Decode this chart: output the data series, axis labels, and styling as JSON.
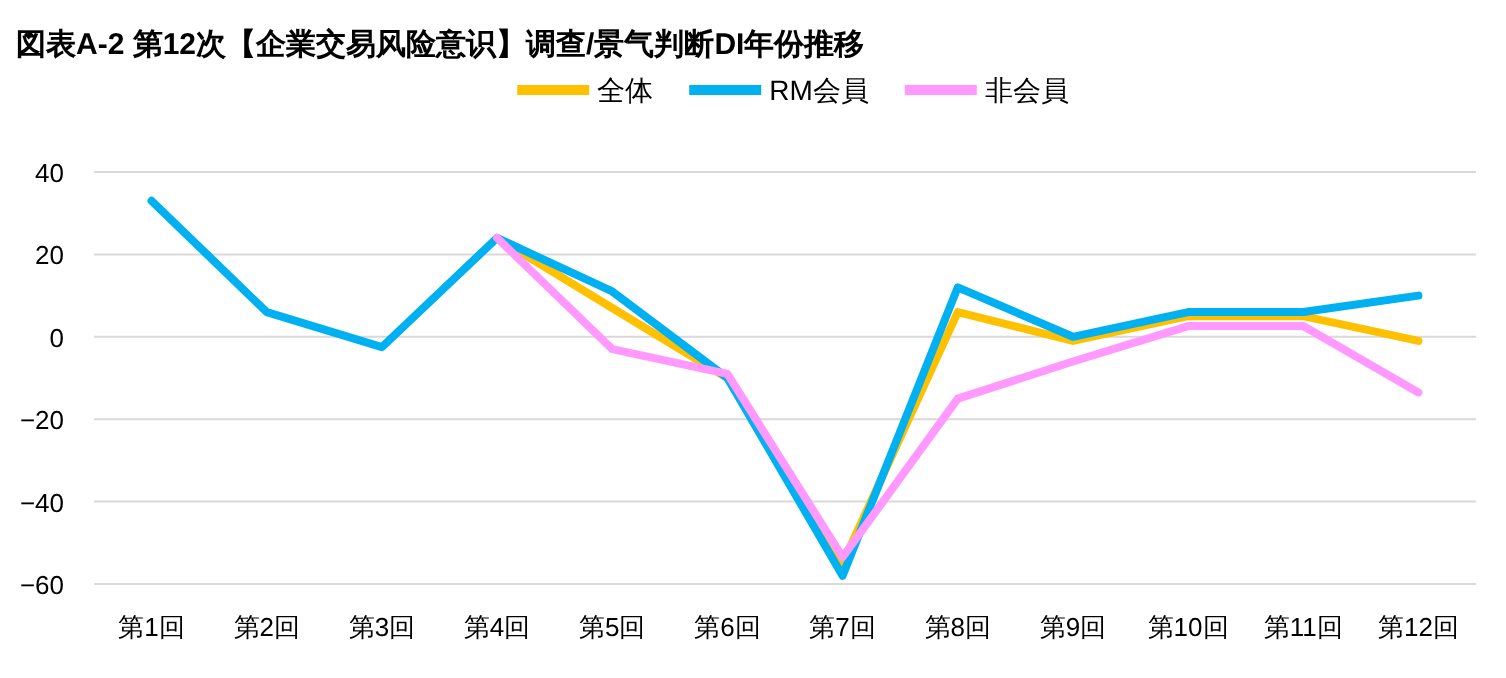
{
  "chart_data": {
    "type": "line",
    "title": "図表A-2 第12次【企業交易风险意识】调查/景气判断DI年份推移",
    "categories": [
      "第1回",
      "第2回",
      "第3回",
      "第4回",
      "第5回",
      "第6回",
      "第7回",
      "第8回",
      "第9回",
      "第10回",
      "第11回",
      "第12回"
    ],
    "series": [
      {
        "name": "全体",
        "color": "#ffc000",
        "values": [
          null,
          null,
          null,
          24,
          7,
          -10,
          -55,
          6,
          -1,
          5,
          5,
          -1
        ]
      },
      {
        "name": "RM会員",
        "color": "#00b0f0",
        "values": [
          33,
          6,
          -2.5,
          24,
          11,
          -10,
          -58,
          12,
          0,
          6,
          6,
          10
        ]
      },
      {
        "name": "非会員",
        "color": "#ff99ff",
        "values": [
          null,
          null,
          null,
          24,
          -3,
          -9,
          -53.5,
          -15,
          -6,
          2.6,
          2.6,
          -13.5
        ]
      }
    ],
    "ylim": [
      -60,
      40
    ],
    "yticks": [
      -60,
      -40,
      -20,
      0,
      20,
      40
    ],
    "grid": "y",
    "legend": "top",
    "marker": "none",
    "line_style": "solid"
  }
}
